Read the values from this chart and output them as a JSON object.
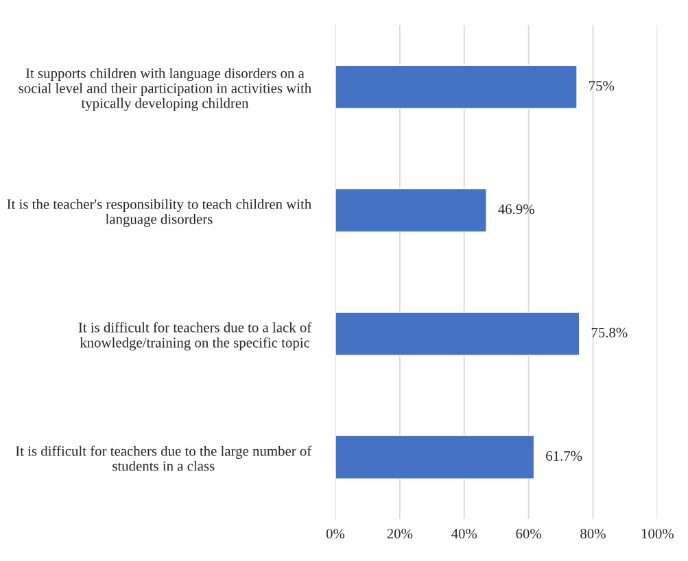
{
  "chart_data": {
    "type": "bar",
    "orientation": "horizontal",
    "categories": [
      "It supports children with language disorders on a social level and their participation in activities with typically developing children",
      "It is the teacher's responsibility to teach children with language disorders",
      "It is difficult for teachers due to a lack of knowledge/training on the specific topic",
      "It is difficult for teachers due to the large number of students in a class"
    ],
    "values": [
      75,
      46.9,
      75.8,
      61.7
    ],
    "value_labels": [
      "75%",
      "46.9%",
      "75.8%",
      "61.7%"
    ],
    "color": "#4472c4",
    "xlim": [
      0,
      100
    ],
    "xticks": [
      {
        "value": 0,
        "label": "0%"
      },
      {
        "value": 20,
        "label": "20%"
      },
      {
        "value": 40,
        "label": "40%"
      },
      {
        "value": 60,
        "label": "60%"
      },
      {
        "value": 80,
        "label": "80%"
      },
      {
        "value": 100,
        "label": "100%"
      }
    ],
    "grid": "x",
    "legend": false
  }
}
